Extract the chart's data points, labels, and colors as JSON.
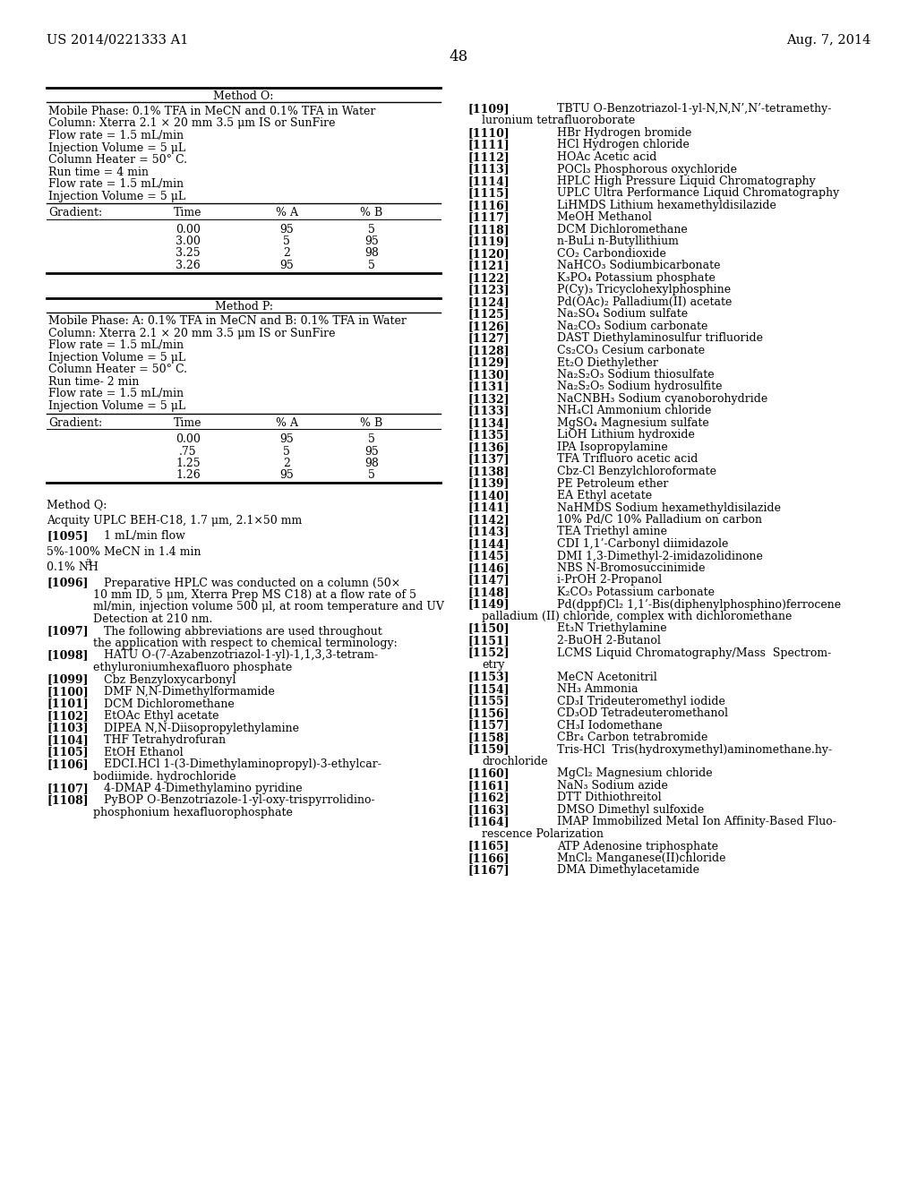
{
  "header_left": "US 2014/0221333 A1",
  "header_right": "Aug. 7, 2014",
  "page_number": "48",
  "bg_color": "#ffffff",
  "method_o": {
    "title": "Method O:",
    "lines": [
      "Mobile Phase: 0.1% TFA in MeCN and 0.1% TFA in Water",
      "Column: Xterra 2.1 × 20 mm 3.5 μm IS or SunFire",
      "Flow rate = 1.5 mL/min",
      "Injection Volume = 5 μL",
      "Column Heater = 50° C.",
      "Run time = 4 min",
      "Flow rate = 1.5 mL/min",
      "Injection Volume = 5 μL"
    ],
    "gradient_header": [
      "Gradient:",
      "Time",
      "% A",
      "% B"
    ],
    "gradient_data": [
      [
        "",
        "0.00",
        "95",
        "5"
      ],
      [
        "",
        "3.00",
        "5",
        "95"
      ],
      [
        "",
        "3.25",
        "2",
        "98"
      ],
      [
        "",
        "3.26",
        "95",
        "5"
      ]
    ]
  },
  "method_p": {
    "title": "Method P:",
    "lines": [
      "Mobile Phase: A: 0.1% TFA in MeCN and B: 0.1% TFA in Water",
      "Column: Xterra 2.1 × 20 mm 3.5 μm IS or SunFire",
      "Flow rate = 1.5 mL/min",
      "Injection Volume = 5 μL",
      "Column Heater = 50° C.",
      "Run time- 2 min",
      "Flow rate = 1.5 mL/min",
      "Injection Volume = 5 μL"
    ],
    "gradient_header": [
      "Gradient:",
      "Time",
      "% A",
      "% B"
    ],
    "gradient_data": [
      [
        "",
        "0.00",
        "95",
        "5"
      ],
      [
        "",
        ".75",
        "5",
        "95"
      ],
      [
        "",
        "1.25",
        "2",
        "98"
      ],
      [
        "",
        "1.26",
        "95",
        "5"
      ]
    ]
  },
  "method_q_lines": [
    "Method Q:",
    "",
    "Acquity UPLC BEH-C18, 1.7 μm, 2.1×50 mm",
    "",
    "[1095]",
    "1 mL/min flow",
    "",
    "5%-100% MeCN in 1.4 min",
    "",
    "0.1% NH₃"
  ],
  "paragraphs_left": [
    {
      "num": "[1096]",
      "text": "Preparative HPLC was conducted on a column (50×\n10 mm ID, 5 μm, Xterra Prep MS C18) at a flow rate of 5\nml/min, injection volume 500 μl, at room temperature and UV\nDetection at 210 nm.",
      "wrap": true
    },
    {
      "num": "[1097]",
      "text": "The following abbreviations are used throughout\nthe application with respect to chemical terminology:",
      "wrap": true
    },
    {
      "num": "[1098]",
      "text": "HATU O-(7-Azabenzotriazol-1-yl)-1,1,3,3-tetram-\nethyluroniumhexafluoro phosphate",
      "wrap": true
    },
    {
      "num": "[1099]",
      "text": "Cbz Benzyloxycarbonyl",
      "wrap": false
    },
    {
      "num": "[1100]",
      "text": "DMF N,N-Dimethylformamide",
      "wrap": false
    },
    {
      "num": "[1101]",
      "text": "DCM Dichloromethane",
      "wrap": false
    },
    {
      "num": "[1102]",
      "text": "EtOAc Ethyl acetate",
      "wrap": false
    },
    {
      "num": "[1103]",
      "text": "DIPEA N,N-Diisopropylethylamine",
      "wrap": false
    },
    {
      "num": "[1104]",
      "text": "THF Tetrahydrofuran",
      "wrap": false
    },
    {
      "num": "[1105]",
      "text": "EtOH Ethanol",
      "wrap": false
    },
    {
      "num": "[1106]",
      "text": "EDCI.HCl 1-(3-Dimethylaminopropyl)-3-ethylcar-\nbodiimide. hydrochloride",
      "wrap": true
    },
    {
      "num": "[1107]",
      "text": "4-DMAP 4-Dimethylamino pyridine",
      "wrap": false
    },
    {
      "num": "[1108]",
      "text": "PyBOP O-Benzotriazole-1-yl-oxy-trispyrrolidino-\nphosphonium hexafluorophosphate",
      "wrap": true
    }
  ],
  "entries_right": [
    {
      "num": "[1109]",
      "text": "TBTU O-Benzotriazol-1-yl-N,N,N’,N’-tetramethy-\nluronium tetrafluoroborate"
    },
    {
      "num": "[1110]",
      "text": "HBr Hydrogen bromide"
    },
    {
      "num": "[1111]",
      "text": "HCl Hydrogen chloride"
    },
    {
      "num": "[1112]",
      "text": "HOAc Acetic acid"
    },
    {
      "num": "[1113]",
      "text": "POCl₃ Phosphorous oxychloride"
    },
    {
      "num": "[1114]",
      "text": "HPLC High Pressure Liquid Chromatography"
    },
    {
      "num": "[1115]",
      "text": "UPLC Ultra Performance Liquid Chromatography"
    },
    {
      "num": "[1116]",
      "text": "LiHMDS Lithium hexamethyldisilazide"
    },
    {
      "num": "[1117]",
      "text": "MeOH Methanol"
    },
    {
      "num": "[1118]",
      "text": "DCM Dichloromethane"
    },
    {
      "num": "[1119]",
      "text": "n-BuLi n-Butyllithium"
    },
    {
      "num": "[1120]",
      "text": "CO₂ Carbondioxide"
    },
    {
      "num": "[1121]",
      "text": "NaHCO₃ Sodiumbicarbonate"
    },
    {
      "num": "[1122]",
      "text": "K₃PO₄ Potassium phosphate"
    },
    {
      "num": "[1123]",
      "text": "P(Cy)₃ Tricyclohexylphosphine"
    },
    {
      "num": "[1124]",
      "text": "Pd(OAc)₂ Palladium(II) acetate"
    },
    {
      "num": "[1125]",
      "text": "Na₂SO₄ Sodium sulfate"
    },
    {
      "num": "[1126]",
      "text": "Na₂CO₃ Sodium carbonate"
    },
    {
      "num": "[1127]",
      "text": "DAST Diethylaminosulfur trifluoride"
    },
    {
      "num": "[1128]",
      "text": "Cs₂CO₃ Cesium carbonate"
    },
    {
      "num": "[1129]",
      "text": "Et₂O Diethylether"
    },
    {
      "num": "[1130]",
      "text": "Na₂S₂O₃ Sodium thiosulfate"
    },
    {
      "num": "[1131]",
      "text": "Na₂S₂O₅ Sodium hydrosulfite"
    },
    {
      "num": "[1132]",
      "text": "NaCNBH₃ Sodium cyanoborohydride"
    },
    {
      "num": "[1133]",
      "text": "NH₄Cl Ammonium chloride"
    },
    {
      "num": "[1134]",
      "text": "MgSO₄ Magnesium sulfate"
    },
    {
      "num": "[1135]",
      "text": "LiOH Lithium hydroxide"
    },
    {
      "num": "[1136]",
      "text": "IPA Isopropylamine"
    },
    {
      "num": "[1137]",
      "text": "TFA Trifluoro acetic acid"
    },
    {
      "num": "[1138]",
      "text": "Cbz-Cl Benzylchloroformate"
    },
    {
      "num": "[1139]",
      "text": "PE Petroleum ether"
    },
    {
      "num": "[1140]",
      "text": "EA Ethyl acetate"
    },
    {
      "num": "[1141]",
      "text": "NaHMDS Sodium hexamethyldisilazide"
    },
    {
      "num": "[1142]",
      "text": "10% Pd/C 10% Palladium on carbon"
    },
    {
      "num": "[1143]",
      "text": "TEA Triethyl amine"
    },
    {
      "num": "[1144]",
      "text": "CDI 1,1’-Carbonyl diimidazole"
    },
    {
      "num": "[1145]",
      "text": "DMI 1,3-Dimethyl-2-imidazolidinone"
    },
    {
      "num": "[1146]",
      "text": "NBS N-Bromosuccinimide"
    },
    {
      "num": "[1147]",
      "text": "i-PrOH 2-Propanol"
    },
    {
      "num": "[1148]",
      "text": "K₂CO₃ Potassium carbonate"
    },
    {
      "num": "[1149]",
      "text": "Pd(dppf)Cl₂ 1,1’-Bis(diphenylphosphino)ferrocene\npalladium (II) chloride, complex with dichloromethane"
    },
    {
      "num": "[1150]",
      "text": "Et₃N Triethylamine"
    },
    {
      "num": "[1151]",
      "text": "2-BuOH 2-Butanol"
    },
    {
      "num": "[1152]",
      "text": "LCMS Liquid Chromatography/Mass  Spectrom-\netry"
    },
    {
      "num": "[1153]",
      "text": "MeCN Acetonitril"
    },
    {
      "num": "[1154]",
      "text": "NH₃ Ammonia"
    },
    {
      "num": "[1155]",
      "text": "CD₃I Trideuteromethyl iodide"
    },
    {
      "num": "[1156]",
      "text": "CD₃OD Tetradeuteromethanol"
    },
    {
      "num": "[1157]",
      "text": "CH₃I Iodomethane"
    },
    {
      "num": "[1158]",
      "text": "CBr₄ Carbon tetrabromide"
    },
    {
      "num": "[1159]",
      "text": "Tris-HCl  Tris(hydroxymethyl)aminomethane.hy-\ndrochloride"
    },
    {
      "num": "[1160]",
      "text": "MgCl₂ Magnesium chloride"
    },
    {
      "num": "[1161]",
      "text": "NaN₃ Sodium azide"
    },
    {
      "num": "[1162]",
      "text": "DTT Dithiothreitol"
    },
    {
      "num": "[1163]",
      "text": "DMSO Dimethyl sulfoxide"
    },
    {
      "num": "[1164]",
      "text": "IMAP Immobilized Metal Ion Affinity-Based Fluo-\nrescence Polarization"
    },
    {
      "num": "[1165]",
      "text": "ATP Adenosine triphosphate"
    },
    {
      "num": "[1166]",
      "text": "MnCl₂ Manganese(II)chloride"
    },
    {
      "num": "[1167]",
      "text": "DMA Dimethylacetamide"
    }
  ]
}
